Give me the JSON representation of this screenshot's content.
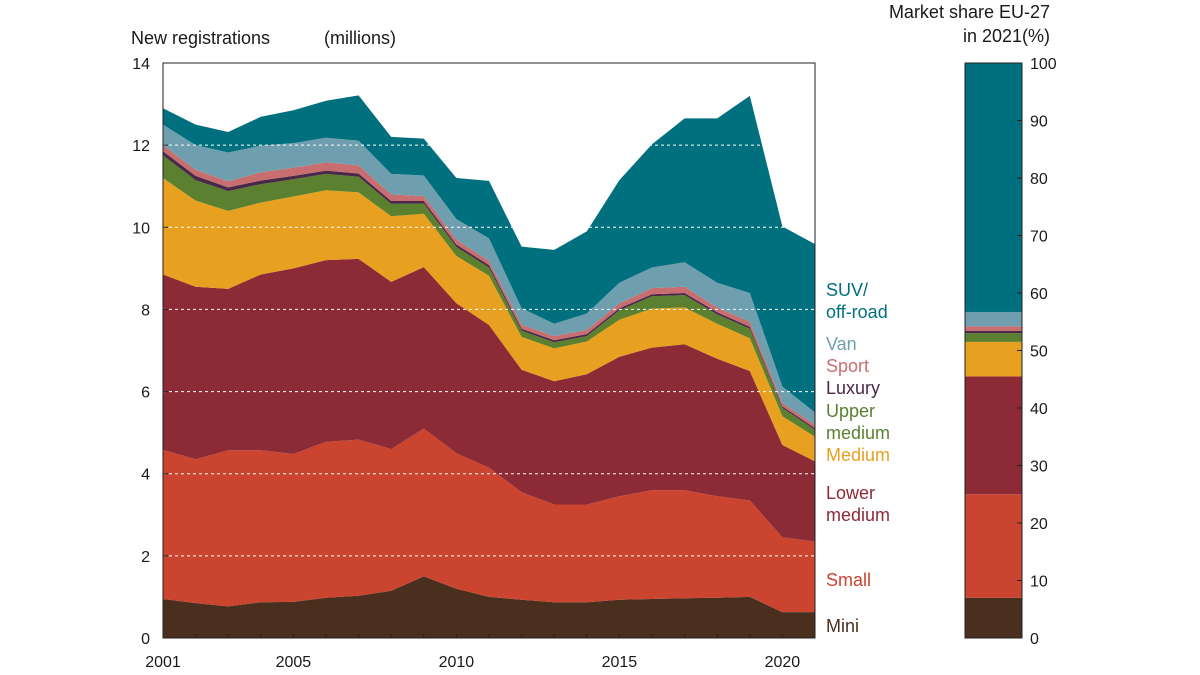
{
  "chart_data": [
    {
      "type": "area",
      "stacked": true,
      "ylabel": "New registrations",
      "yunit": "(millions)",
      "x": [
        2001,
        2002,
        2003,
        2004,
        2005,
        2006,
        2007,
        2008,
        2009,
        2010,
        2011,
        2012,
        2013,
        2014,
        2015,
        2016,
        2017,
        2018,
        2019,
        2020,
        2021
      ],
      "xlim": [
        2001,
        2021
      ],
      "xticks": [
        "2001",
        "2005",
        "2010",
        "2015",
        "2020"
      ],
      "ylim": [
        0,
        14
      ],
      "yticks": [
        "0",
        "2",
        "4",
        "6",
        "8",
        "10",
        "12",
        "14"
      ],
      "grid": "horizontal dashed",
      "labels_position": "right",
      "series": [
        {
          "name": "Mini",
          "color": "#4a2f1e",
          "values": [
            0.95,
            0.85,
            0.77,
            0.87,
            0.88,
            0.98,
            1.03,
            1.15,
            1.5,
            1.2,
            1.0,
            0.93,
            0.87,
            0.87,
            0.93,
            0.95,
            0.97,
            0.98,
            1.0,
            0.63,
            0.63
          ]
        },
        {
          "name": "Small",
          "color": "#cb4430",
          "values": [
            3.63,
            3.5,
            3.8,
            3.7,
            3.6,
            3.8,
            3.8,
            3.45,
            3.6,
            3.3,
            3.15,
            2.62,
            2.38,
            2.38,
            2.52,
            2.65,
            2.63,
            2.47,
            2.35,
            1.82,
            1.72
          ]
        },
        {
          "name": "Lower medium",
          "color": "#8c2a36",
          "values": [
            4.27,
            4.2,
            3.93,
            4.28,
            4.52,
            4.42,
            4.4,
            4.07,
            3.93,
            3.65,
            3.47,
            2.98,
            3.0,
            3.17,
            3.4,
            3.47,
            3.55,
            3.35,
            3.15,
            2.25,
            1.95
          ]
        },
        {
          "name": "Medium",
          "color": "#e8a020",
          "values": [
            2.35,
            2.1,
            1.9,
            1.75,
            1.75,
            1.7,
            1.62,
            1.6,
            1.3,
            1.15,
            1.2,
            0.8,
            0.8,
            0.8,
            0.9,
            0.95,
            0.9,
            0.85,
            0.8,
            0.7,
            0.6
          ]
        },
        {
          "name": "Upper medium",
          "color": "#5a8030",
          "values": [
            0.55,
            0.5,
            0.48,
            0.45,
            0.42,
            0.4,
            0.38,
            0.3,
            0.25,
            0.22,
            0.2,
            0.15,
            0.15,
            0.13,
            0.23,
            0.3,
            0.3,
            0.23,
            0.23,
            0.2,
            0.17
          ]
        },
        {
          "name": "Luxury",
          "color": "#4a2848",
          "values": [
            0.1,
            0.1,
            0.09,
            0.09,
            0.08,
            0.08,
            0.08,
            0.07,
            0.06,
            0.06,
            0.06,
            0.05,
            0.05,
            0.05,
            0.05,
            0.05,
            0.05,
            0.05,
            0.05,
            0.04,
            0.04
          ]
        },
        {
          "name": "Sport",
          "color": "#c86e70",
          "values": [
            0.15,
            0.15,
            0.15,
            0.2,
            0.2,
            0.2,
            0.2,
            0.16,
            0.12,
            0.12,
            0.1,
            0.1,
            0.1,
            0.1,
            0.12,
            0.15,
            0.15,
            0.12,
            0.12,
            0.08,
            0.08
          ]
        },
        {
          "name": "Van",
          "color": "#6f9fae",
          "values": [
            0.5,
            0.6,
            0.7,
            0.65,
            0.6,
            0.6,
            0.6,
            0.5,
            0.5,
            0.5,
            0.55,
            0.4,
            0.3,
            0.4,
            0.5,
            0.5,
            0.6,
            0.6,
            0.7,
            0.4,
            0.3
          ]
        },
        {
          "name": "SUV/ off-road",
          "color": "#00707f",
          "values": [
            0.4,
            0.5,
            0.5,
            0.7,
            0.8,
            0.9,
            1.1,
            0.9,
            0.9,
            1.0,
            1.4,
            1.5,
            1.8,
            2.0,
            2.5,
            3.0,
            3.5,
            4.0,
            4.8,
            3.9,
            4.1
          ]
        }
      ]
    },
    {
      "type": "bar",
      "stacked": true,
      "title": "Market share EU-27\nin 2021(%)",
      "ylim": [
        0,
        100
      ],
      "yticks": [
        "0",
        "10",
        "20",
        "30",
        "40",
        "50",
        "60",
        "70",
        "80",
        "90",
        "100"
      ],
      "categories": [
        "2021"
      ],
      "series": [
        {
          "name": "Mini",
          "color": "#4a2f1e",
          "values": [
            7
          ]
        },
        {
          "name": "Small",
          "color": "#cb4430",
          "values": [
            18
          ]
        },
        {
          "name": "Lower medium",
          "color": "#8c2a36",
          "values": [
            20.5
          ]
        },
        {
          "name": "Medium",
          "color": "#e8a020",
          "values": [
            6
          ]
        },
        {
          "name": "Upper medium",
          "color": "#5a8030",
          "values": [
            1.5
          ]
        },
        {
          "name": "Luxury",
          "color": "#4a2848",
          "values": [
            0.4
          ]
        },
        {
          "name": "Sport",
          "color": "#c86e70",
          "values": [
            0.8
          ]
        },
        {
          "name": "Van",
          "color": "#6f9fae",
          "values": [
            2.5
          ]
        },
        {
          "name": "SUV/ off-road",
          "color": "#00707f",
          "values": [
            43.3
          ]
        }
      ]
    }
  ]
}
